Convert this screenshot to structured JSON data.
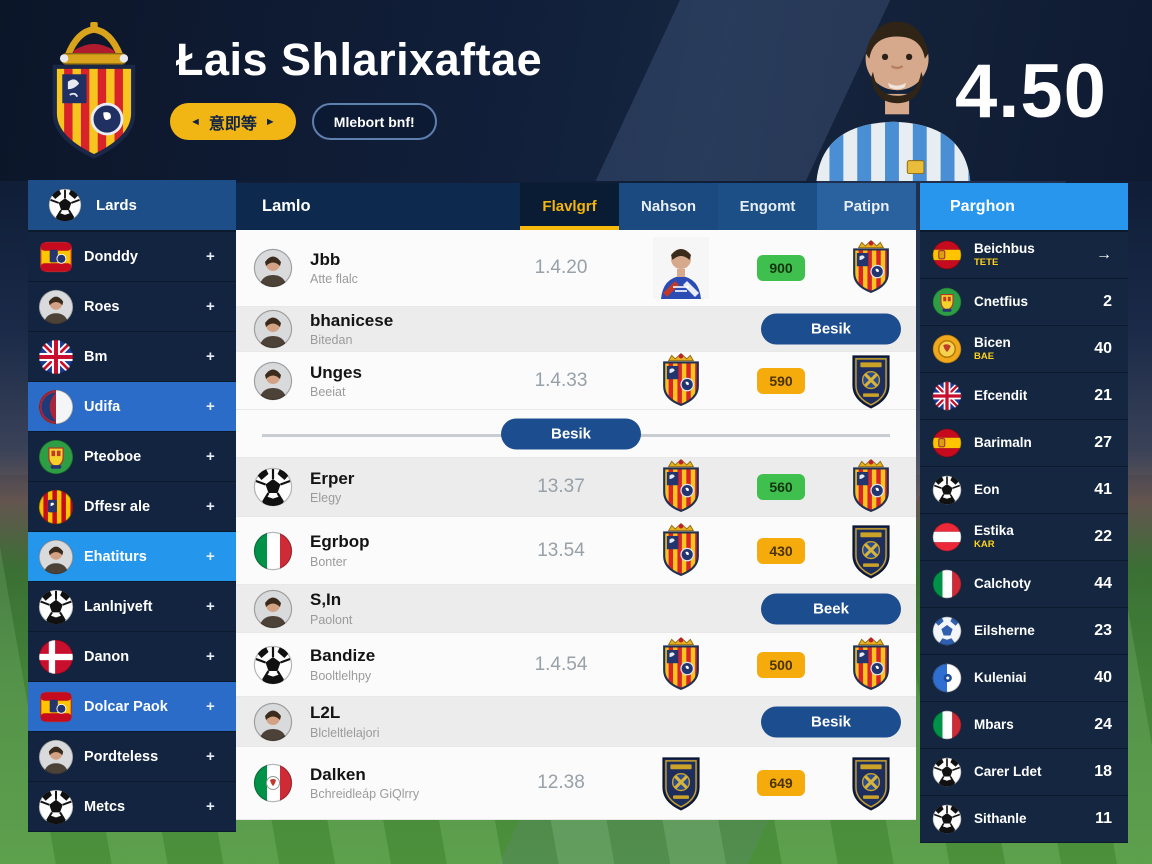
{
  "colors": {
    "accent_yellow": "#f2b614",
    "accent_blue": "#2796ec",
    "badge_green": "#3fbf4d",
    "badge_yellow": "#f6ab0c",
    "highlight_blue": "#2a6cc8"
  },
  "header": {
    "title": "Łais Shlarixaftae",
    "odds": "4.50",
    "cta": {
      "left_arrow": "◄",
      "label": "意即等",
      "right_arrow": "►"
    },
    "secondary_label": "Mlebort bnf!"
  },
  "left_sidebar": {
    "header": {
      "label": "Lards",
      "icon": "soccer-ball"
    },
    "items": [
      {
        "label": "Donddy",
        "suffix": "+",
        "icon": "spain-crest",
        "highlight": ""
      },
      {
        "label": "Roes",
        "suffix": "+",
        "icon": "avatar",
        "highlight": ""
      },
      {
        "label": "Bm",
        "suffix": "+",
        "icon": "uk-flag",
        "highlight": ""
      },
      {
        "label": "Udifa",
        "suffix": "+",
        "icon": "red-blue-ball",
        "highlight": "med"
      },
      {
        "label": "Pteoboe",
        "suffix": "+",
        "icon": "green-crest",
        "highlight": ""
      },
      {
        "label": "Dffesr ale",
        "suffix": "+",
        "icon": "catalan-crest",
        "highlight": ""
      },
      {
        "label": "Ehatiturs",
        "suffix": "+",
        "icon": "avatar",
        "highlight": "bright"
      },
      {
        "label": "Lanlnjveft",
        "suffix": "+",
        "icon": "soccer-ball",
        "highlight": ""
      },
      {
        "label": "Danon",
        "suffix": "+",
        "icon": "denmark-flag",
        "highlight": ""
      },
      {
        "label": "Dolcar Paok",
        "suffix": "+",
        "icon": "spain-crest",
        "highlight": "med"
      },
      {
        "label": "Pordteless",
        "suffix": "+",
        "icon": "avatar",
        "highlight": ""
      },
      {
        "label": "Metcs",
        "suffix": "+",
        "icon": "soccer-ball",
        "highlight": ""
      }
    ]
  },
  "main": {
    "list_header": "Lamlo",
    "tabs": [
      {
        "label": "Flavlgrf",
        "active": true
      },
      {
        "label": "Nahson",
        "active": false
      },
      {
        "label": "Engomt",
        "active": false
      },
      {
        "label": "Patipn",
        "active": false
      }
    ],
    "rows": [
      {
        "type": "data",
        "name": "Jbb",
        "sub": "Atte flalc",
        "odds": "1.4.20",
        "icon": "avatar",
        "mid_icon": "player-photo",
        "badge": {
          "text": "900",
          "color": "green"
        },
        "right_icon": "crest-yellow"
      },
      {
        "type": "pill",
        "name": "bhanicese",
        "sub": "Bitedan",
        "icon": "avatar",
        "pill": "Besik"
      },
      {
        "type": "data",
        "name": "Unges",
        "sub": "Beeiat",
        "odds": "1.4.33",
        "icon": "avatar",
        "mid_icon": "crest-yellow",
        "badge": {
          "text": "590",
          "color": "yellow"
        },
        "right_icon": "crest-dark"
      },
      {
        "type": "divider",
        "pill": "Besik"
      },
      {
        "type": "data",
        "name": "Erper",
        "sub": "Elegy",
        "odds": "13.37",
        "icon": "soccer-ball",
        "mid_icon": "crest-yellow",
        "badge": {
          "text": "560",
          "color": "green"
        },
        "right_icon": "crest-yellow"
      },
      {
        "type": "data",
        "name": "Egrbop",
        "sub": "Bonter",
        "odds": "13.54",
        "icon": "italy-flag",
        "mid_icon": "crest-yellow",
        "badge": {
          "text": "430",
          "color": "yellow"
        },
        "right_icon": "crest-dark"
      },
      {
        "type": "pill",
        "name": "S,In",
        "sub": "Paolont",
        "icon": "avatar",
        "pill": "Beek"
      },
      {
        "type": "data",
        "name": "Bandize",
        "sub": "Booltlelhpy",
        "odds": "1.4.54",
        "icon": "soccer-ball",
        "mid_icon": "crest-yellow",
        "badge": {
          "text": "500",
          "color": "yellow"
        },
        "right_icon": "crest-yellow"
      },
      {
        "type": "pill",
        "name": "L2L",
        "sub": "Blcleltlelajori",
        "icon": "avatar",
        "pill": "Besik"
      },
      {
        "type": "data",
        "name": "Dalken",
        "sub": "Bchreidleáp GiQlrry",
        "odds": "12.38",
        "icon": "italy-crest",
        "mid_icon": "crest-dark",
        "badge": {
          "text": "649",
          "color": "yellow"
        },
        "right_icon": "crest-dark"
      }
    ]
  },
  "right_sidebar": {
    "header": "Parghon",
    "items": [
      {
        "label": "Beichbus",
        "sub": "TETE",
        "value": "→",
        "icon": "spain-flag"
      },
      {
        "label": "Cnetfius",
        "sub": "",
        "value": "2",
        "icon": "green-crest"
      },
      {
        "label": "Bicen",
        "sub": "BAE",
        "value": "40",
        "icon": "yellow-crest"
      },
      {
        "label": "Efcendit",
        "sub": "",
        "value": "21",
        "icon": "uk-flag"
      },
      {
        "label": "Barimaln",
        "sub": "",
        "value": "27",
        "icon": "spain-flag"
      },
      {
        "label": "Eon",
        "sub": "",
        "value": "41",
        "icon": "soccer-ball"
      },
      {
        "label": "Estika",
        "sub": "KAR",
        "value": "22",
        "icon": "austria-flag"
      },
      {
        "label": "Calchoty",
        "sub": "",
        "value": "44",
        "icon": "italy-flag"
      },
      {
        "label": "Eilsherne",
        "sub": "",
        "value": "23",
        "icon": "blue-ball"
      },
      {
        "label": "Kuleniai",
        "sub": "",
        "value": "40",
        "icon": "blue-white-circle"
      },
      {
        "label": "Mbars",
        "sub": "",
        "value": "24",
        "icon": "italy-flag"
      },
      {
        "label": "Carer Ldet",
        "sub": "",
        "value": "18",
        "icon": "soccer-ball"
      },
      {
        "label": "Sithanle",
        "sub": "",
        "value": "11",
        "icon": "soccer-ball"
      }
    ]
  }
}
